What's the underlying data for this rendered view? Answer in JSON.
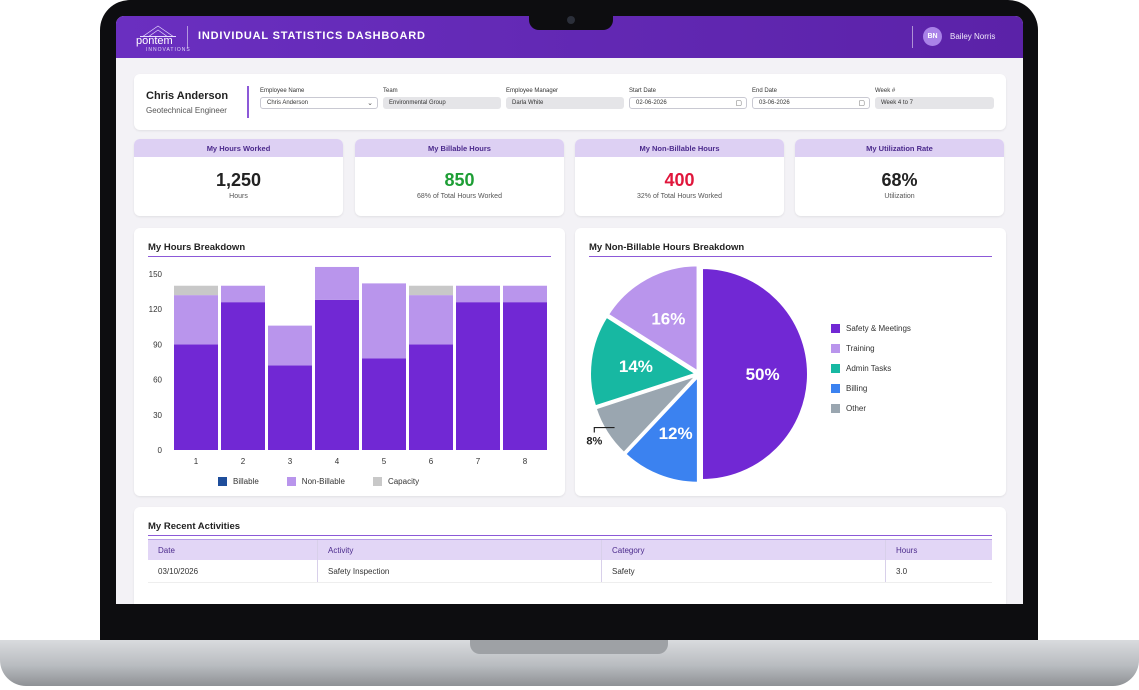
{
  "header": {
    "logo_text": "pontem",
    "logo_subtext": "INNOVATIONS",
    "title": "INDIVIDUAL STATISTICS DASHBOARD",
    "user_initials": "BN",
    "user_name": "Bailey Norris"
  },
  "profile": {
    "name": "Chris Anderson",
    "role": "Geotechnical Engineer"
  },
  "filters": {
    "employee_name": {
      "label": "Employee Name",
      "value": "Chris Anderson"
    },
    "team": {
      "label": "Team",
      "value": "Environmental Group"
    },
    "employee_manager": {
      "label": "Employee Manager",
      "value": "Darla White"
    },
    "start_date": {
      "label": "Start Date",
      "value": "02-06-2026"
    },
    "end_date": {
      "label": "End Date",
      "value": "03-06-2026"
    },
    "week": {
      "label": "Week #",
      "value": "Week 4 to 7"
    }
  },
  "kpis": [
    {
      "title": "My Hours Worked",
      "value": "1,250",
      "sub": "Hours",
      "color": "#222222"
    },
    {
      "title": "My Billable Hours",
      "value": "850",
      "sub": "68% of Total Hours Worked",
      "color": "#1e9e35"
    },
    {
      "title": "My Non-Billable Hours",
      "value": "400",
      "sub": "32% of Total Hours Worked",
      "color": "#e0173c"
    },
    {
      "title": "My Utilization Rate",
      "value": "68%",
      "sub": "Utilization",
      "color": "#222222"
    }
  ],
  "hours_breakdown": {
    "title": "My Hours Breakdown",
    "legend": [
      {
        "label": "Billable",
        "color": "#1f4e9b"
      },
      {
        "label": "Non-Billable",
        "color": "#b995ec"
      },
      {
        "label": "Capacity",
        "color": "#c8c8c8"
      }
    ]
  },
  "nonbillable_breakdown": {
    "title": "My Non-Billable Hours Breakdown",
    "legend": [
      {
        "label": "Safety & Meetings",
        "color": "#7128d4"
      },
      {
        "label": "Training",
        "color": "#b995ec"
      },
      {
        "label": "Admin Tasks",
        "color": "#17b8a2"
      },
      {
        "label": "Billing",
        "color": "#3b82f0"
      },
      {
        "label": "Other",
        "color": "#9aa6b0"
      }
    ]
  },
  "chart_data": [
    {
      "type": "bar",
      "title": "My Hours Breakdown",
      "categories": [
        "1",
        "2",
        "3",
        "4",
        "5",
        "6",
        "7",
        "8"
      ],
      "series": [
        {
          "name": "Billable",
          "values": [
            90,
            126,
            72,
            128,
            78,
            90,
            126,
            126
          ],
          "color": "#7128d4"
        },
        {
          "name": "Non-Billable",
          "values": [
            42,
            14,
            34,
            28,
            64,
            42,
            14,
            14
          ],
          "color": "#b995ec"
        },
        {
          "name": "Capacity",
          "values": [
            8,
            0,
            0,
            0,
            0,
            8,
            0,
            0
          ],
          "color": "#c8c8c8"
        }
      ],
      "ylim": [
        0,
        150
      ],
      "yticks": [
        0,
        30,
        60,
        90,
        120,
        150
      ],
      "legend_position": "bottom"
    },
    {
      "type": "pie",
      "title": "My Non-Billable Hours Breakdown",
      "labels": [
        "Safety & Meetings",
        "Billing",
        "Other",
        "Admin Tasks",
        "Training"
      ],
      "values": [
        50,
        12,
        8,
        14,
        16
      ],
      "colors": [
        "#7128d4",
        "#3b82f0",
        "#9aa6b0",
        "#17b8a2",
        "#b995ec"
      ],
      "legend_position": "right"
    }
  ],
  "activities": {
    "title": "My Recent Activities",
    "columns": [
      "Date",
      "Activity",
      "Category",
      "Hours"
    ],
    "rows": [
      [
        "03/10/2026",
        "Safety Inspection",
        "Safety",
        "3.0"
      ]
    ]
  }
}
